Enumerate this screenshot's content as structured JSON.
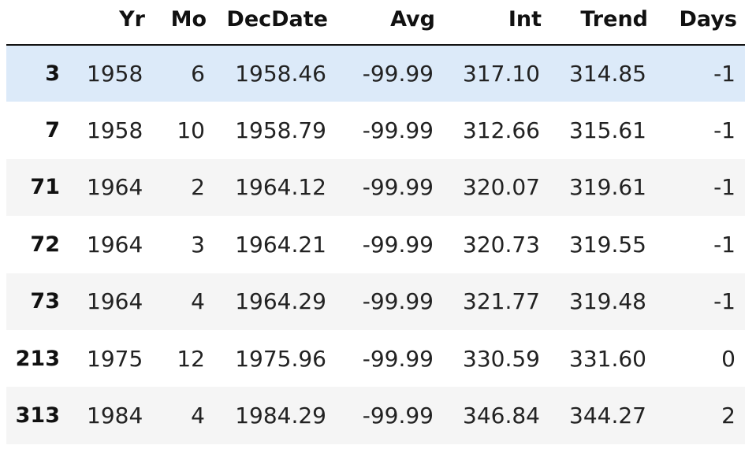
{
  "table": {
    "columns": [
      "",
      "Yr",
      "Mo",
      "DecDate",
      "Avg",
      "Int",
      "Trend",
      "Days"
    ],
    "rows": [
      {
        "index": "3",
        "cells": [
          "1958",
          "6",
          "1958.46",
          "-99.99",
          "317.10",
          "314.85",
          "-1"
        ],
        "highlighted": true
      },
      {
        "index": "7",
        "cells": [
          "1958",
          "10",
          "1958.79",
          "-99.99",
          "312.66",
          "315.61",
          "-1"
        ],
        "highlighted": false
      },
      {
        "index": "71",
        "cells": [
          "1964",
          "2",
          "1964.12",
          "-99.99",
          "320.07",
          "319.61",
          "-1"
        ],
        "highlighted": false
      },
      {
        "index": "72",
        "cells": [
          "1964",
          "3",
          "1964.21",
          "-99.99",
          "320.73",
          "319.55",
          "-1"
        ],
        "highlighted": false
      },
      {
        "index": "73",
        "cells": [
          "1964",
          "4",
          "1964.29",
          "-99.99",
          "321.77",
          "319.48",
          "-1"
        ],
        "highlighted": false
      },
      {
        "index": "213",
        "cells": [
          "1975",
          "12",
          "1975.96",
          "-99.99",
          "330.59",
          "331.60",
          "0"
        ],
        "highlighted": false
      },
      {
        "index": "313",
        "cells": [
          "1984",
          "4",
          "1984.29",
          "-99.99",
          "346.84",
          "344.27",
          "2"
        ],
        "highlighted": false
      }
    ]
  },
  "colors": {
    "highlight_row": "#dceaf9",
    "striped_row": "#f5f5f5",
    "header_rule": "#111111"
  }
}
